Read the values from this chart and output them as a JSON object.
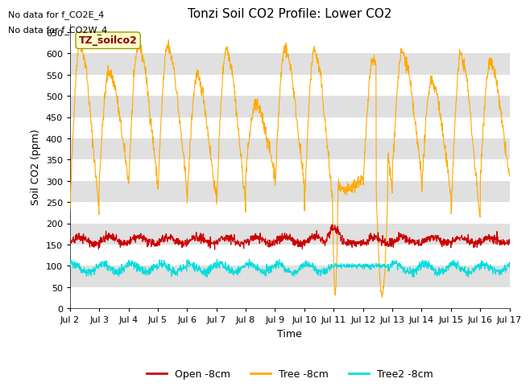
{
  "title": "Tonzi Soil CO2 Profile: Lower CO2",
  "ylabel": "Soil CO2 (ppm)",
  "xlabel": "Time",
  "ylim": [
    0,
    670
  ],
  "yticks": [
    0,
    50,
    100,
    150,
    200,
    250,
    300,
    350,
    400,
    450,
    500,
    550,
    600,
    650
  ],
  "no_data_text": [
    "No data for f_CO2E_4",
    "No data for f_CO2W_4"
  ],
  "site_label": "TZ_soilco2",
  "legend_labels": [
    "Open -8cm",
    "Tree -8cm",
    "Tree2 -8cm"
  ],
  "line_colors": [
    "#cc0000",
    "#ffaa00",
    "#00dddd"
  ],
  "bg_color": "#ffffff",
  "band_color": "#e0e0e0",
  "num_days": 15,
  "points_per_day": 96,
  "figsize": [
    6.4,
    4.8
  ],
  "dpi": 100
}
